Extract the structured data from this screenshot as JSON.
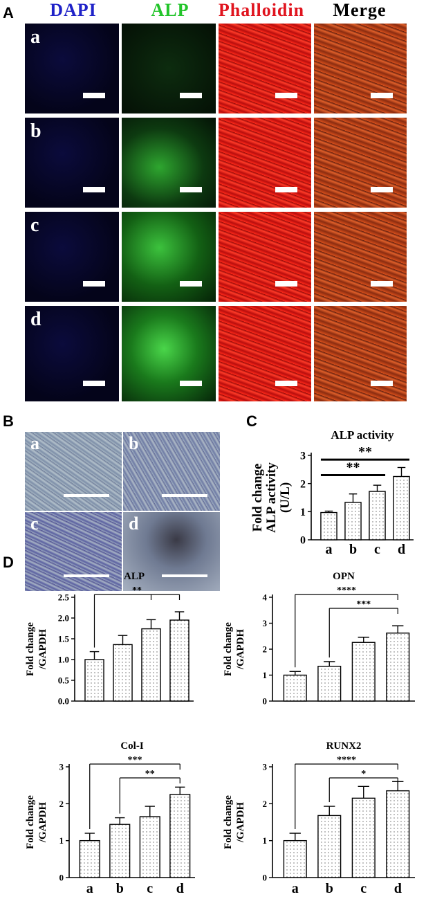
{
  "panel_labels": {
    "A": "A",
    "B": "B",
    "C": "C",
    "D": "D"
  },
  "panelA": {
    "headers": [
      {
        "text": "DAPI",
        "color": "#1f22c8"
      },
      {
        "text": "ALP",
        "color": "#22c42a"
      },
      {
        "text": "Phalloidin",
        "color": "#e0141e"
      },
      {
        "text": "Merge",
        "color": "#000000"
      }
    ],
    "rows": [
      "a",
      "b",
      "c",
      "d"
    ]
  },
  "panelB": {
    "tiles": [
      "a",
      "b",
      "c",
      "d"
    ]
  },
  "chart_data": [
    {
      "id": "C",
      "type": "bar",
      "title": "ALP activity",
      "ylabel": [
        "Fold change",
        "ALP activity",
        "(U/L)"
      ],
      "categories": [
        "a",
        "b",
        "c",
        "d"
      ],
      "values": [
        0.97,
        1.33,
        1.72,
        2.25
      ],
      "errors": [
        0.05,
        0.3,
        0.22,
        0.32
      ],
      "ylim": [
        0,
        3
      ],
      "yticks": [
        "0",
        "1",
        "2",
        "3"
      ],
      "significance": [
        {
          "from": "a",
          "to": "c",
          "label": "**"
        },
        {
          "from": "a",
          "to": "d",
          "label": "**"
        }
      ]
    },
    {
      "id": "D1",
      "type": "bar",
      "title": "ALP",
      "ylabel": [
        "Fold change",
        "/GAPDH"
      ],
      "categories": [
        "a",
        "b",
        "c",
        "d"
      ],
      "values": [
        1.0,
        1.36,
        1.74,
        1.95
      ],
      "errors": [
        0.19,
        0.22,
        0.22,
        0.2
      ],
      "ylim": [
        0,
        2.5
      ],
      "yticks": [
        "0.0",
        "0.5",
        "1.0",
        "1.5",
        "2.0",
        "2.5"
      ],
      "significance": [
        {
          "from": "a",
          "to": "d",
          "label": "**",
          "tick": "c"
        }
      ]
    },
    {
      "id": "D2",
      "type": "bar",
      "title": "OPN",
      "ylabel": [
        "Fold change",
        "/GAPDH"
      ],
      "categories": [
        "a",
        "b",
        "c",
        "d"
      ],
      "values": [
        1.0,
        1.34,
        2.26,
        2.62
      ],
      "errors": [
        0.14,
        0.18,
        0.2,
        0.28
      ],
      "ylim": [
        0,
        4
      ],
      "yticks": [
        "0",
        "1",
        "2",
        "3",
        "4"
      ],
      "significance": [
        {
          "from": "a",
          "to": "d",
          "label": "****"
        },
        {
          "from": "b",
          "to": "d",
          "label": "***"
        }
      ]
    },
    {
      "id": "D3",
      "type": "bar",
      "title": "Col-I",
      "ylabel": [
        "Fold change",
        "/GAPDH"
      ],
      "categories": [
        "a",
        "b",
        "c",
        "d"
      ],
      "values": [
        1.0,
        1.44,
        1.65,
        2.25
      ],
      "errors": [
        0.2,
        0.18,
        0.28,
        0.2
      ],
      "ylim": [
        0,
        3
      ],
      "yticks": [
        "0",
        "1",
        "2",
        "3"
      ],
      "significance": [
        {
          "from": "a",
          "to": "d",
          "label": "***"
        },
        {
          "from": "b",
          "to": "d",
          "label": "**"
        }
      ]
    },
    {
      "id": "D4",
      "type": "bar",
      "title": "RUNX2",
      "ylabel": [
        "Fold change",
        "/GAPDH"
      ],
      "categories": [
        "a",
        "b",
        "c",
        "d"
      ],
      "values": [
        1.0,
        1.68,
        2.15,
        2.35
      ],
      "errors": [
        0.2,
        0.25,
        0.32,
        0.25
      ],
      "ylim": [
        0,
        3
      ],
      "yticks": [
        "0",
        "1",
        "2",
        "3"
      ],
      "significance": [
        {
          "from": "a",
          "to": "d",
          "label": "****"
        },
        {
          "from": "b",
          "to": "d",
          "label": "*"
        }
      ]
    }
  ]
}
